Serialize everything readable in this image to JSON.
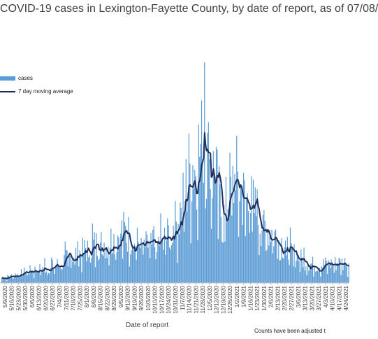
{
  "chart_data": {
    "type": "bar",
    "title": "COVID-19 cases in Lexington-Fayette County, by date of report, as of 07/08/",
    "xlabel": "Date of report",
    "note": "Counts have been adjusted t",
    "series": [
      {
        "name": "cases",
        "kind": "bar",
        "color": "#5b9bd5"
      },
      {
        "name": "7 day moving average",
        "kind": "line",
        "color": "#1f2f5a"
      }
    ],
    "x_tick_labels": [
      "5/9/2020",
      "5/16/2020",
      "5/23/2020",
      "5/30/2020",
      "6/6/2020",
      "6/13/2020",
      "6/20/2020",
      "6/27/2020",
      "7/4/2020",
      "7/11/2020",
      "7/18/2020",
      "7/25/2020",
      "8/1/2020",
      "8/8/2020",
      "8/15/2020",
      "8/22/2020",
      "8/29/2020",
      "9/5/2020",
      "9/12/2020",
      "9/19/2020",
      "9/26/2020",
      "10/3/2020",
      "10/10/2020",
      "10/17/2020",
      "10/24/2020",
      "10/31/2020",
      "11/7/2020",
      "11/14/2020",
      "11/21/2020",
      "11/28/2020",
      "12/5/2020",
      "12/12/2020",
      "12/19/2020",
      "12/26/2020",
      "1/2/2021",
      "1/9/2021",
      "1/16/2021",
      "1/23/2021",
      "1/30/2021",
      "2/6/2021",
      "2/13/2021",
      "2/20/2021",
      "2/27/2021",
      "3/6/2021",
      "3/13/2021",
      "3/20/2021",
      "3/27/2021",
      "4/3/2021",
      "4/10/2021",
      "4/17/2021",
      "4/24/2021"
    ],
    "weekly_average_cases": [
      8,
      12,
      14,
      18,
      20,
      22,
      24,
      26,
      30,
      38,
      44,
      48,
      52,
      60,
      62,
      66,
      70,
      82,
      80,
      66,
      62,
      56,
      60,
      68,
      80,
      92,
      120,
      175,
      200,
      215,
      190,
      160,
      95,
      150,
      165,
      135,
      125,
      110,
      90,
      85,
      70,
      60,
      48,
      40,
      35,
      30,
      28,
      30,
      30,
      32,
      32
    ],
    "peak_daily_cases": 350,
    "ylim": [
      0,
      360
    ],
    "legend_position": "top-left",
    "grid": false
  }
}
